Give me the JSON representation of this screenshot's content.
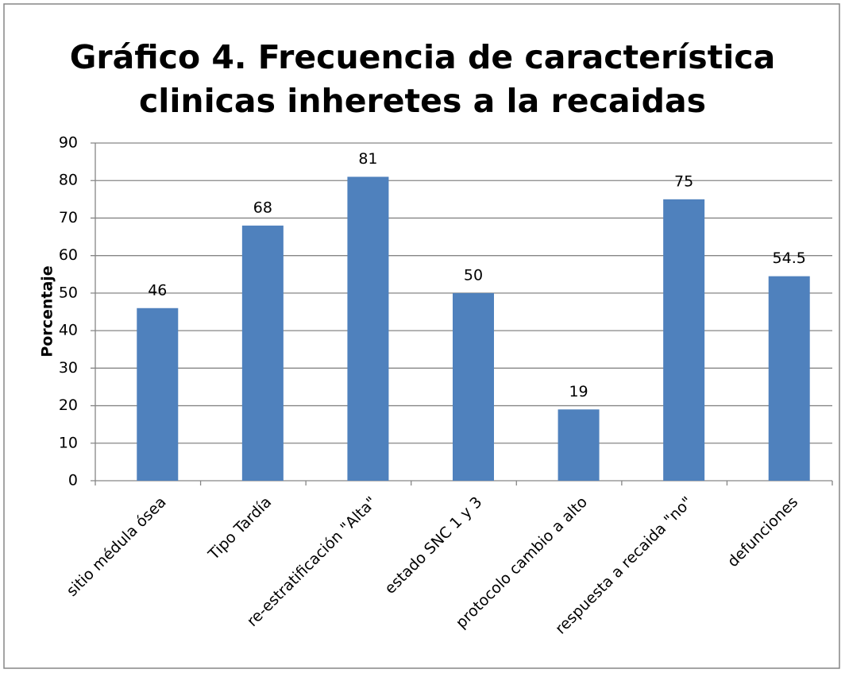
{
  "chart_data": {
    "type": "bar",
    "title": [
      "Gráfico 4. Frecuencia de característica",
      "clinicas inheretes a la recaidas"
    ],
    "y_label": "Porcentaje",
    "categories": [
      "sitio médula ósea",
      "Tipo Tardía",
      "re-estratificación \"Alta\"",
      "estado SNC 1 y 3",
      "protocolo cambio a alto",
      "respuesta a recaida \"no\"",
      "defunciones"
    ],
    "values": [
      46,
      68,
      81,
      50,
      19,
      75,
      54.5
    ],
    "color": "#4f81bd",
    "ylim": [
      0,
      90
    ],
    "yticks": [
      0,
      10,
      20,
      30,
      40,
      50,
      60,
      70,
      80,
      90
    ],
    "grid": true
  }
}
